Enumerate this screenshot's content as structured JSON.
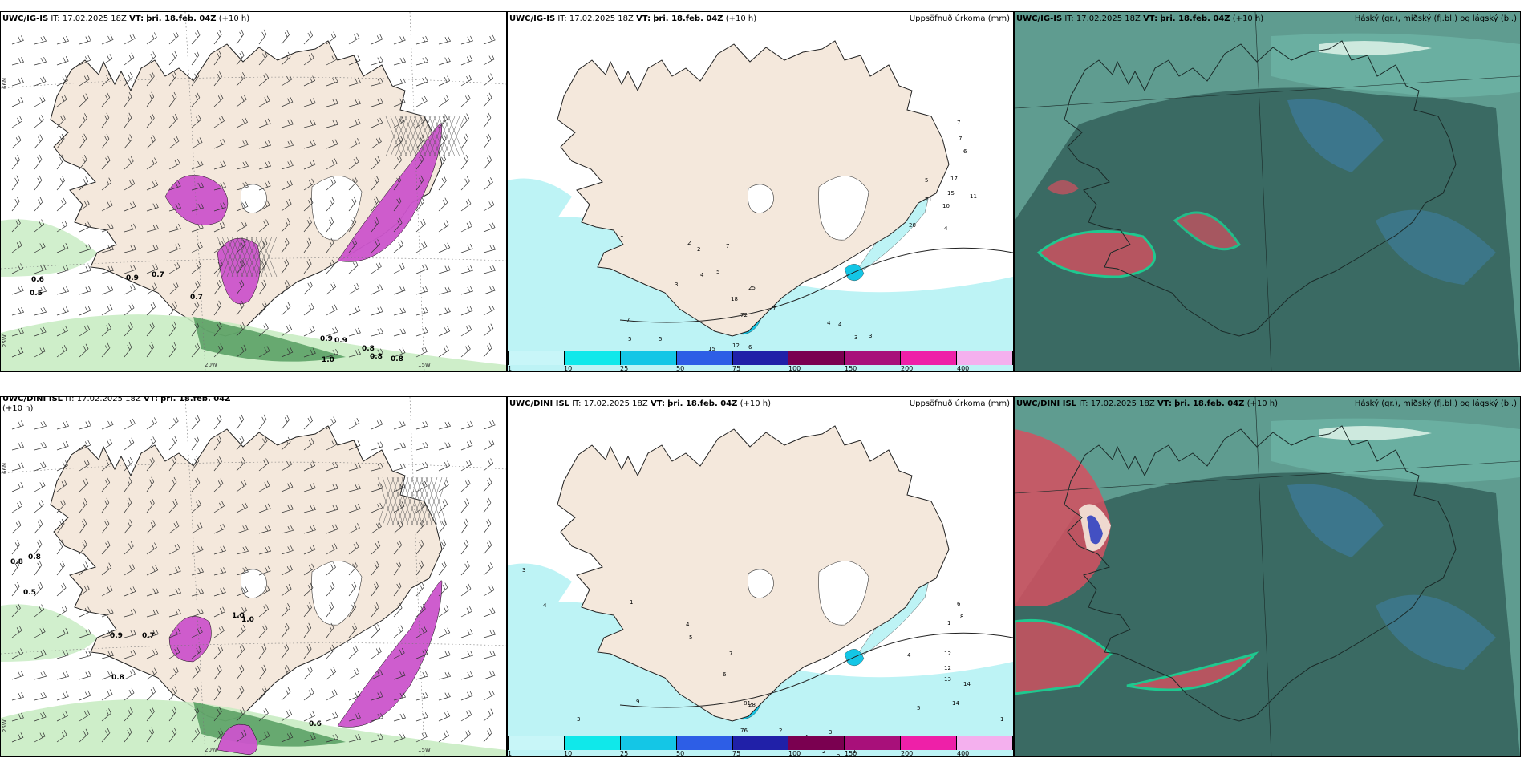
{
  "palette": {
    "land": "#f4e8dc",
    "sea": "#ffffff",
    "precip_light": "#bdf3f5",
    "snow_purple": "#cc55cc",
    "green_light": "#c6ebc0",
    "green_dark": "#3c8c4a",
    "cloud_teal": "#5f9c90",
    "cloud_dark": "#2e5a54",
    "cloud_red": "#d55060"
  },
  "colorbar": {
    "colors": [
      "#c8f6f8",
      "#10e8ea",
      "#14c6e6",
      "#2d5ee6",
      "#2020a8",
      "#7a0050",
      "#a8107a",
      "#ee20a8",
      "#f4b0ee"
    ],
    "ticks": [
      "1",
      "10",
      "25",
      "50",
      "75",
      "100",
      "150",
      "200",
      "400"
    ]
  },
  "panels": [
    {
      "id": "p1",
      "model": "UWC/IG-IS",
      "it_label": "IT:",
      "it_value": "17.02.2025 18Z",
      "vt_label": "VT:",
      "vt_value": "þri. 18.feb. 04Z",
      "lead": "(+10 h)",
      "right_title": "",
      "lon_labels": [
        "20W",
        "15W"
      ],
      "lat_labels": [
        "66N",
        "25W"
      ],
      "values": [
        "0.6",
        "0.5",
        "0.9",
        "0.7",
        "0.7",
        "0.9",
        "0.9",
        "0.8",
        "1.0",
        "0.8",
        "0.8"
      ]
    },
    {
      "id": "p2",
      "model": "UWC/IG-IS",
      "it_label": "IT:",
      "it_value": "17.02.2025 18Z",
      "vt_label": "VT:",
      "vt_value": "þri. 18.feb. 04Z",
      "lead": "(+10 h)",
      "right_title": "Uppsöfnuð úrkoma (mm)",
      "values": [
        "7",
        "7",
        "6",
        "5",
        "17",
        "15",
        "11",
        "10",
        "21",
        "20",
        "4",
        "2",
        "2",
        "4",
        "3",
        "5",
        "7",
        "25",
        "18",
        "72",
        "7",
        "6",
        "4",
        "4",
        "3",
        "3",
        "7",
        "5",
        "5",
        "15",
        "12",
        "1"
      ]
    },
    {
      "id": "p3",
      "model": "UWC/IG-IS",
      "it_label": "IT:",
      "it_value": "17.02.2025 18Z",
      "vt_label": "VT:",
      "vt_value": "þri. 18.feb. 04Z",
      "lead": "(+10 h)",
      "right_title": "Háský (gr.), miðský (fj.bl.) og lágský (bl.)"
    },
    {
      "id": "p4",
      "model": "UWC/DINI ISL",
      "it_label": "IT:",
      "it_value": "17.02.2025 18Z",
      "vt_label": "VT:",
      "vt_value": "þri. 18.feb. 04Z",
      "lead": "(+10 h)",
      "right_title": "",
      "lon_labels": [
        "20W",
        "15W"
      ],
      "lat_labels": [
        "66N",
        "25W"
      ],
      "values": [
        "0.8",
        "0.8",
        "0.5",
        "1.0",
        "0.9",
        "0.7",
        "0.8",
        "0.6",
        "1.0"
      ]
    },
    {
      "id": "p5",
      "model": "UWC/DINI ISL",
      "it_label": "IT:",
      "it_value": "17.02.2025 18Z",
      "vt_label": "VT:",
      "vt_value": "þri. 18.feb. 04Z",
      "lead": "(+10 h)",
      "right_title": "Uppsöfnuð úrkoma (mm)",
      "values": [
        "3",
        "4",
        "1",
        "6",
        "8",
        "1",
        "12",
        "12",
        "13",
        "14",
        "14",
        "1",
        "4",
        "5",
        "4",
        "5",
        "7",
        "6",
        "28",
        "81",
        "76",
        "2",
        "5",
        "4",
        "3",
        "9",
        "5",
        "3",
        "2",
        "2",
        "2",
        "1"
      ]
    },
    {
      "id": "p6",
      "model": "UWC/DINI ISL",
      "it_label": "IT:",
      "it_value": "17.02.2025 18Z",
      "vt_label": "VT:",
      "vt_value": "þri. 18.feb. 04Z",
      "lead": "(+10 h)",
      "right_title": "Háský (gr.), miðský (fj.bl.) og lágský (bl.)"
    }
  ]
}
